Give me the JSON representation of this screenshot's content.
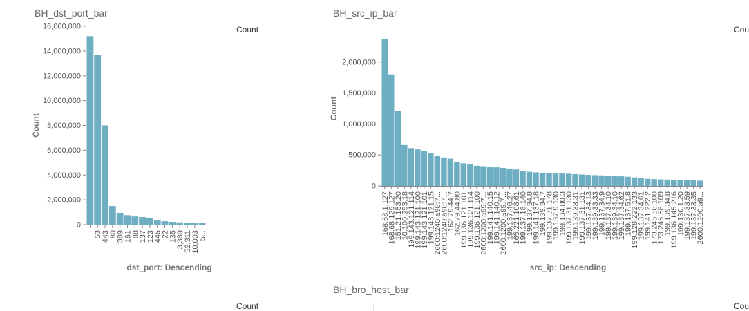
{
  "panels": {
    "dst_port": {
      "title": "BH_dst_port_bar",
      "legend": "Count"
    },
    "src_ip": {
      "title": "BH_src_ip_bar",
      "legend": "Count"
    },
    "bro_host": {
      "title": "BH_bro_host_bar",
      "legend": "Count"
    }
  },
  "colors": {
    "bar": "#6eaec2",
    "axis": "#888888",
    "tick_text": "#555555",
    "title_text": "#6a6a6a"
  },
  "chart_data": [
    {
      "type": "bar",
      "title": "BH_dst_port_bar",
      "xlabel": "dst_port: Descending",
      "ylabel": "Count",
      "legend": "Count",
      "ylim": [
        0,
        16000000
      ],
      "yticks": [
        0,
        2000000,
        4000000,
        6000000,
        8000000,
        10000000,
        12000000,
        14000000,
        16000000
      ],
      "ytick_labels": [
        "0",
        "2,000,000",
        "4,000,000",
        "6,000,000",
        "8,000,000",
        "10,000,000",
        "12,000,000",
        "14,000,000",
        "16,000,000"
      ],
      "categories": [
        "",
        "53",
        "443",
        "80",
        "389",
        "161",
        "88",
        "137",
        "123",
        "445",
        "22",
        "135",
        "3,389",
        "52,311",
        "10,003",
        "5..."
      ],
      "tick_labels": [
        "53",
        "443",
        "80",
        "389",
        "161",
        "88",
        "137",
        "123",
        "445",
        "22",
        "135",
        "3,389",
        "52,311",
        "10,003",
        "5..."
      ],
      "values": [
        15200000,
        13700000,
        8000000,
        1500000,
        950000,
        760000,
        660000,
        610000,
        560000,
        380000,
        270000,
        220000,
        180000,
        150000,
        130000,
        110000
      ]
    },
    {
      "type": "bar",
      "title": "BH_src_ip_bar",
      "xlabel": "src_ip: Descending",
      "ylabel": "Count",
      "legend": "Count",
      "ylim": [
        0,
        2500000
      ],
      "yticks": [
        0,
        500000,
        1000000,
        1500000,
        2000000
      ],
      "ytick_labels": [
        "0",
        "500,000",
        "1,000,000",
        "1,500,000",
        "2,000,000"
      ],
      "tick_labels": [
        "168.68.1.127",
        "168.68.129.127",
        "151.21.153.20",
        "10.100.253.18",
        "199.143.121.114",
        "199.143.121.100",
        "199.143.121.101",
        "199.143.121.15",
        "2600:1240:a98:7...",
        "2600:1240:a98:7...",
        "162.79.44.7",
        "162.79.44.80",
        "199.136.121.101",
        "199.136.121.114",
        "199.136.121.100",
        "2600:1200:a99:7...",
        "199.141.140.15",
        "199.141.140.12",
        "2600:1200:a99:7...",
        "199.137.46.27",
        "165.221.108.61",
        "199.137.18.140",
        "199.137.34.8",
        "199.141.137.18",
        "199.139.34.7",
        "199.137.31.178",
        "199.137.9.130",
        "199.134.80.3",
        "199.137.31.130",
        "199.139.33.31",
        "199.137.31.131",
        "199.137.34.13",
        "199.139.33.33",
        "199.137.34.9",
        "199.137.34.10",
        "199.139.34.10",
        "199.137.34.62",
        "199.137.51.8",
        "199.128.222.133",
        "199.137.34.61",
        "199.141.222.2",
        "173.245.58.100",
        "173.245.58.109",
        "199.139.34.8",
        "199.136.145.216",
        "199.130.1.20",
        "199.137.33.59",
        "199.137.33.35",
        "2600:1200:a9..."
      ],
      "values": [
        2370000,
        1800000,
        1210000,
        660000,
        610000,
        590000,
        560000,
        530000,
        490000,
        460000,
        440000,
        380000,
        365000,
        350000,
        325000,
        318000,
        310000,
        300000,
        290000,
        280000,
        265000,
        245000,
        228000,
        218000,
        213000,
        208000,
        205000,
        200000,
        197000,
        190000,
        184000,
        178000,
        174000,
        170000,
        166000,
        162000,
        155000,
        148000,
        138000,
        125000,
        115000,
        110000,
        106000,
        103000,
        100000,
        98000,
        96000,
        93000,
        85000
      ]
    },
    {
      "type": "bar",
      "title": "BH_bro_host_bar",
      "legend": "Count"
    }
  ]
}
